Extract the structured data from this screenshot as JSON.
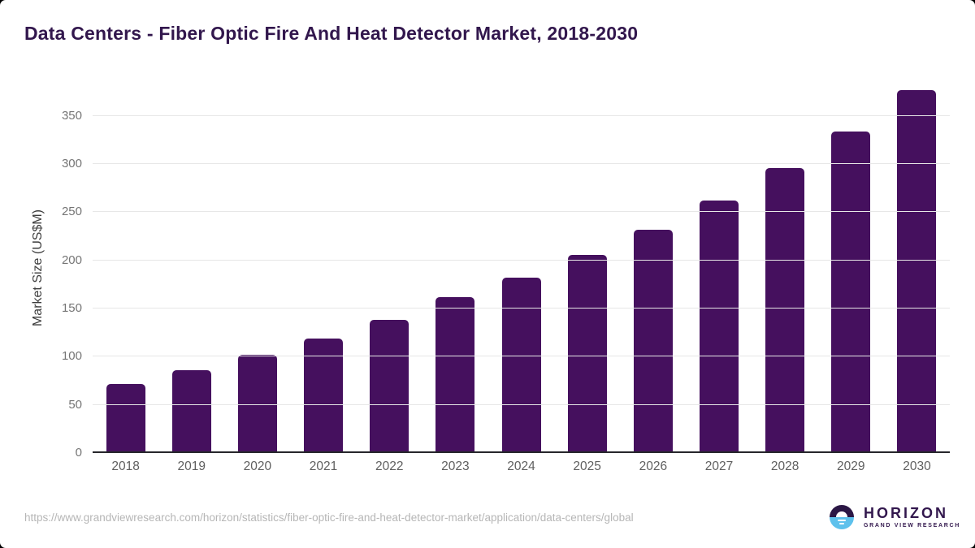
{
  "chart_data": {
    "type": "bar",
    "title": "Data Centers - Fiber Optic Fire And Heat Detector Market, 2018-2030",
    "xlabel": "",
    "ylabel": "Market Size (US$M)",
    "categories": [
      "2018",
      "2019",
      "2020",
      "2021",
      "2022",
      "2023",
      "2024",
      "2025",
      "2026",
      "2027",
      "2028",
      "2029",
      "2030"
    ],
    "values": [
      72,
      86,
      102,
      119,
      138,
      162,
      182,
      206,
      232,
      262,
      296,
      334,
      377
    ],
    "yticks": [
      0,
      50,
      100,
      150,
      200,
      250,
      300,
      350
    ],
    "ylim": [
      0,
      380
    ],
    "grid": true,
    "legend": "none",
    "bar_color": "#45105e"
  },
  "footer": {
    "source_url": "https://www.grandviewresearch.com/horizon/statistics/fiber-optic-fire-and-heat-detector-market/application/data-centers/global",
    "logo": {
      "brand": "HORIZON",
      "tagline": "GRAND VIEW RESEARCH"
    }
  },
  "colors": {
    "bar": "#45105e",
    "title_text": "#32174d",
    "gridline": "#e7e7e7",
    "axis_line": "#26262b",
    "tick_text": "#757575",
    "url_text": "#b6b6b6",
    "logo_dark": "#2b1745",
    "logo_blue": "#5ec1ec"
  }
}
